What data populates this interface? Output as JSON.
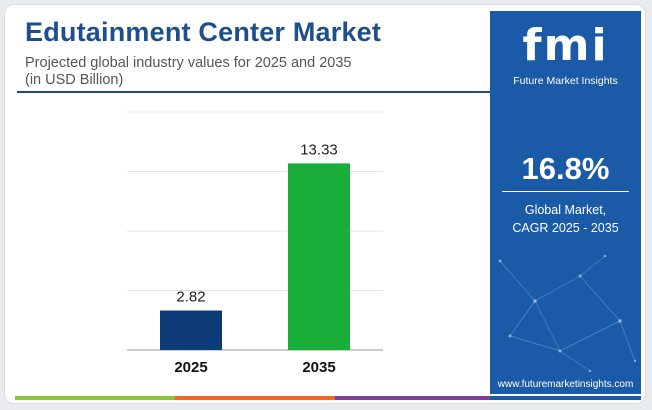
{
  "header": {
    "title": "Edutainment Center Market",
    "subtitle_line1": "Projected global industry values for 2025 and 2035",
    "subtitle_line2": "(in USD Billion)"
  },
  "chart_data": {
    "type": "bar",
    "categories": [
      "2025",
      "2035"
    ],
    "values": [
      2.82,
      13.33
    ],
    "value_labels": [
      "2.82",
      "13.33"
    ],
    "bar_colors": [
      "#0d3b78",
      "#1aad3a"
    ],
    "ylim": [
      0,
      17
    ],
    "grid": true,
    "xlabel": "",
    "ylabel": ""
  },
  "panel": {
    "logo_mark": "fmi",
    "logo_text": "Future Market Insights",
    "cagr_value": "16.8%",
    "cagr_label_line1": "Global Market,",
    "cagr_label_line2": "CAGR 2025 - 2035",
    "url": "www.futuremarketinsights.com",
    "background_color": "#1a5aa6"
  },
  "footer_stripe_colors": [
    "#8cc63f",
    "#f26522",
    "#7b3f98",
    "#1a5aa6"
  ]
}
